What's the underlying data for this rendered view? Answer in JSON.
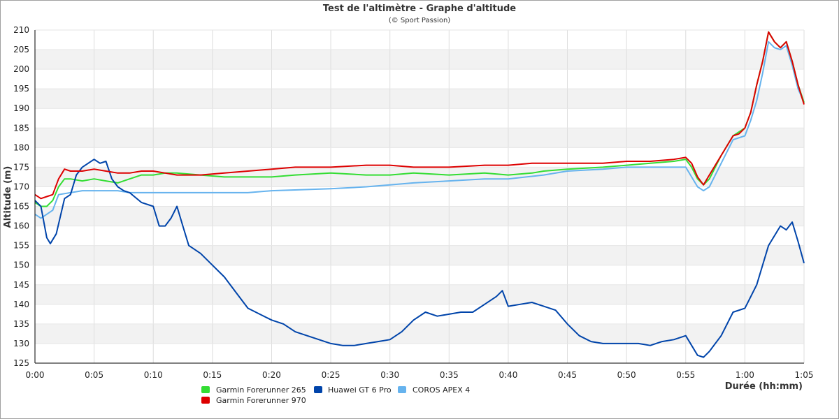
{
  "chart_data": {
    "type": "line",
    "title": "Test de l'altimètre - Graphe d'altitude",
    "subtitle": "(© Sport Passion)",
    "xlabel": "Durée (hh:mm)",
    "ylabel": "Altitude (m)",
    "xlim": [
      0,
      65
    ],
    "ylim": [
      125,
      210
    ],
    "x_ticks": [
      0,
      5,
      10,
      15,
      20,
      25,
      30,
      35,
      40,
      45,
      50,
      55,
      60,
      65
    ],
    "x_tick_labels": [
      "0:00",
      "0:05",
      "0:10",
      "0:15",
      "0:20",
      "0:25",
      "0:30",
      "0:35",
      "0:40",
      "0:45",
      "0:50",
      "0:55",
      "1:00",
      "1:05"
    ],
    "y_ticks": [
      125,
      130,
      135,
      140,
      145,
      150,
      155,
      160,
      165,
      170,
      175,
      180,
      185,
      190,
      195,
      200,
      205,
      210
    ],
    "grid": true,
    "legend_position": "bottom-left",
    "series": [
      {
        "name": "Garmin Forerunner 265",
        "color": "#33dd33",
        "points": [
          [
            0,
            166
          ],
          [
            0.5,
            165
          ],
          [
            1,
            165
          ],
          [
            1.5,
            166.5
          ],
          [
            2,
            170
          ],
          [
            2.5,
            172
          ],
          [
            3,
            172
          ],
          [
            4,
            171.5
          ],
          [
            5,
            172
          ],
          [
            6,
            171.5
          ],
          [
            7,
            171
          ],
          [
            8,
            172
          ],
          [
            9,
            173
          ],
          [
            10,
            173
          ],
          [
            11,
            173.5
          ],
          [
            12,
            173.5
          ],
          [
            14,
            173
          ],
          [
            16,
            172.5
          ],
          [
            18,
            172.5
          ],
          [
            20,
            172.5
          ],
          [
            22,
            173
          ],
          [
            25,
            173.5
          ],
          [
            28,
            173
          ],
          [
            30,
            173
          ],
          [
            32,
            173.5
          ],
          [
            35,
            173
          ],
          [
            38,
            173.5
          ],
          [
            40,
            173
          ],
          [
            42,
            173.5
          ],
          [
            43,
            174
          ],
          [
            45,
            174.5
          ],
          [
            48,
            175
          ],
          [
            50,
            175.5
          ],
          [
            52,
            176
          ],
          [
            54,
            176.5
          ],
          [
            55,
            177
          ],
          [
            55.5,
            175
          ],
          [
            56,
            172
          ],
          [
            56.5,
            170.5
          ],
          [
            57,
            172
          ],
          [
            58,
            178
          ],
          [
            59,
            183
          ],
          [
            59.5,
            184
          ],
          [
            60,
            185
          ],
          [
            60.5,
            189
          ],
          [
            61,
            196
          ],
          [
            61.5,
            202
          ],
          [
            62,
            209.5
          ],
          [
            62.5,
            207
          ],
          [
            63,
            205.5
          ],
          [
            63.5,
            207
          ],
          [
            64,
            202
          ],
          [
            64.5,
            196
          ],
          [
            65,
            191.5
          ]
        ]
      },
      {
        "name": "Garmin Forerunner 970",
        "color": "#dd0000",
        "points": [
          [
            0,
            168
          ],
          [
            0.5,
            167
          ],
          [
            1,
            167.5
          ],
          [
            1.5,
            168
          ],
          [
            2,
            172
          ],
          [
            2.5,
            174.5
          ],
          [
            3,
            174
          ],
          [
            4,
            174
          ],
          [
            5,
            174.5
          ],
          [
            6,
            174
          ],
          [
            7,
            173.5
          ],
          [
            8,
            173.5
          ],
          [
            9,
            174
          ],
          [
            10,
            174
          ],
          [
            11,
            173.5
          ],
          [
            12,
            173
          ],
          [
            14,
            173
          ],
          [
            16,
            173.5
          ],
          [
            18,
            174
          ],
          [
            20,
            174.5
          ],
          [
            22,
            175
          ],
          [
            25,
            175
          ],
          [
            28,
            175.5
          ],
          [
            30,
            175.5
          ],
          [
            32,
            175
          ],
          [
            35,
            175
          ],
          [
            38,
            175.5
          ],
          [
            40,
            175.5
          ],
          [
            42,
            176
          ],
          [
            45,
            176
          ],
          [
            48,
            176
          ],
          [
            50,
            176.5
          ],
          [
            52,
            176.5
          ],
          [
            54,
            177
          ],
          [
            55,
            177.5
          ],
          [
            55.5,
            176
          ],
          [
            56,
            172.5
          ],
          [
            56.5,
            170.5
          ],
          [
            57,
            173
          ],
          [
            58,
            178
          ],
          [
            59,
            183
          ],
          [
            59.5,
            183.5
          ],
          [
            60,
            185
          ],
          [
            60.5,
            189
          ],
          [
            61,
            196
          ],
          [
            61.5,
            202
          ],
          [
            62,
            209.5
          ],
          [
            62.5,
            207
          ],
          [
            63,
            205.5
          ],
          [
            63.5,
            207
          ],
          [
            64,
            202
          ],
          [
            64.5,
            196
          ],
          [
            65,
            191
          ]
        ]
      },
      {
        "name": "Huawei GT 6 Pro",
        "color": "#0044aa",
        "points": [
          [
            0,
            166.5
          ],
          [
            0.5,
            165
          ],
          [
            1,
            157
          ],
          [
            1.3,
            155.5
          ],
          [
            1.8,
            158
          ],
          [
            2.5,
            167
          ],
          [
            3,
            168
          ],
          [
            3.5,
            173
          ],
          [
            4,
            175
          ],
          [
            5,
            177
          ],
          [
            5.5,
            176
          ],
          [
            6,
            176.5
          ],
          [
            6.5,
            172
          ],
          [
            7,
            170
          ],
          [
            7.5,
            169
          ],
          [
            8,
            168.5
          ],
          [
            9,
            166
          ],
          [
            10,
            165
          ],
          [
            10.5,
            160
          ],
          [
            11,
            160
          ],
          [
            11.5,
            162
          ],
          [
            12,
            165
          ],
          [
            12.5,
            160
          ],
          [
            13,
            155
          ],
          [
            14,
            153
          ],
          [
            15,
            150
          ],
          [
            16,
            147
          ],
          [
            17,
            143
          ],
          [
            18,
            139
          ],
          [
            19,
            137.5
          ],
          [
            20,
            136
          ],
          [
            21,
            135
          ],
          [
            22,
            133
          ],
          [
            23,
            132
          ],
          [
            24,
            131
          ],
          [
            25,
            130
          ],
          [
            26,
            129.5
          ],
          [
            27,
            129.5
          ],
          [
            28,
            130
          ],
          [
            29,
            130.5
          ],
          [
            30,
            131
          ],
          [
            31,
            133
          ],
          [
            32,
            136
          ],
          [
            33,
            138
          ],
          [
            34,
            137
          ],
          [
            35,
            137.5
          ],
          [
            36,
            138
          ],
          [
            37,
            138
          ],
          [
            38,
            140
          ],
          [
            39,
            142
          ],
          [
            39.5,
            143.5
          ],
          [
            40,
            139.5
          ],
          [
            41,
            140
          ],
          [
            42,
            140.5
          ],
          [
            43,
            139.5
          ],
          [
            44,
            138.5
          ],
          [
            45,
            135
          ],
          [
            46,
            132
          ],
          [
            47,
            130.5
          ],
          [
            48,
            130
          ],
          [
            49,
            130
          ],
          [
            50,
            130
          ],
          [
            51,
            130
          ],
          [
            52,
            129.5
          ],
          [
            53,
            130.5
          ],
          [
            54,
            131
          ],
          [
            55,
            132
          ],
          [
            56,
            127
          ],
          [
            56.5,
            126.5
          ],
          [
            57,
            128
          ],
          [
            58,
            132
          ],
          [
            59,
            138
          ],
          [
            60,
            139
          ],
          [
            61,
            145
          ],
          [
            62,
            155
          ],
          [
            63,
            160
          ],
          [
            63.5,
            159
          ],
          [
            64,
            161
          ],
          [
            64.5,
            156
          ],
          [
            65,
            150.5
          ]
        ]
      },
      {
        "name": "COROS APEX 4",
        "color": "#66b3ee",
        "points": [
          [
            0,
            163
          ],
          [
            0.5,
            162
          ],
          [
            1,
            163
          ],
          [
            1.5,
            164
          ],
          [
            2,
            168
          ],
          [
            3,
            168.5
          ],
          [
            4,
            169
          ],
          [
            6,
            169
          ],
          [
            7,
            169
          ],
          [
            8,
            168.5
          ],
          [
            9,
            168.5
          ],
          [
            10,
            168.5
          ],
          [
            12,
            168.5
          ],
          [
            15,
            168.5
          ],
          [
            18,
            168.5
          ],
          [
            20,
            169
          ],
          [
            25,
            169.5
          ],
          [
            28,
            170
          ],
          [
            30,
            170.5
          ],
          [
            32,
            171
          ],
          [
            35,
            171.5
          ],
          [
            38,
            172
          ],
          [
            40,
            172
          ],
          [
            43,
            173
          ],
          [
            45,
            174
          ],
          [
            48,
            174.5
          ],
          [
            50,
            175
          ],
          [
            52,
            175
          ],
          [
            54,
            175
          ],
          [
            55,
            175
          ],
          [
            55.5,
            172.5
          ],
          [
            56,
            170
          ],
          [
            56.5,
            169
          ],
          [
            57,
            170
          ],
          [
            58,
            176
          ],
          [
            59,
            182
          ],
          [
            60,
            183
          ],
          [
            60.5,
            187
          ],
          [
            61,
            192
          ],
          [
            61.5,
            199
          ],
          [
            62,
            207
          ],
          [
            62.5,
            205.5
          ],
          [
            63,
            205
          ],
          [
            63.5,
            206
          ],
          [
            64,
            201
          ],
          [
            64.5,
            195
          ],
          [
            65,
            191.5
          ]
        ]
      }
    ]
  }
}
